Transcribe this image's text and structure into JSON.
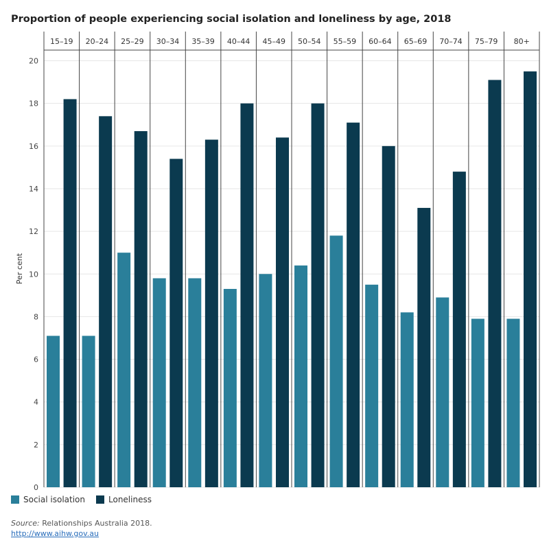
{
  "chart_data": {
    "type": "bar",
    "title": "Proportion of people experiencing social isolation and loneliness by age, 2018",
    "ylabel": "Per cent",
    "xlabel": "",
    "ylim": [
      0,
      20.5
    ],
    "yticks": [
      0,
      2,
      4,
      6,
      8,
      10,
      12,
      14,
      16,
      18,
      20
    ],
    "categories": [
      "15–19",
      "20–24",
      "25–29",
      "30–34",
      "35–39",
      "40–44",
      "45–49",
      "50–54",
      "55–59",
      "60–64",
      "65–69",
      "70–74",
      "75–79",
      "80+"
    ],
    "series": [
      {
        "name": "Social isolation",
        "color": "#2a7f9a",
        "values": [
          7.1,
          7.1,
          11.0,
          9.8,
          9.8,
          9.3,
          10.0,
          10.4,
          11.8,
          9.5,
          8.2,
          8.9,
          7.9,
          7.9
        ]
      },
      {
        "name": "Loneliness",
        "color": "#0b3a4f",
        "values": [
          18.2,
          17.4,
          16.7,
          15.4,
          16.3,
          18.0,
          16.4,
          18.0,
          17.1,
          16.0,
          13.1,
          14.8,
          19.1,
          19.5
        ]
      }
    ]
  },
  "legend": {
    "items": [
      {
        "label": "Social isolation",
        "color": "#2a7f9a"
      },
      {
        "label": "Loneliness",
        "color": "#0b3a4f"
      }
    ]
  },
  "source": {
    "prefix": "Source:",
    "text": " Relationships Australia 2018.",
    "link": "http://www.aihw.gov.au"
  }
}
